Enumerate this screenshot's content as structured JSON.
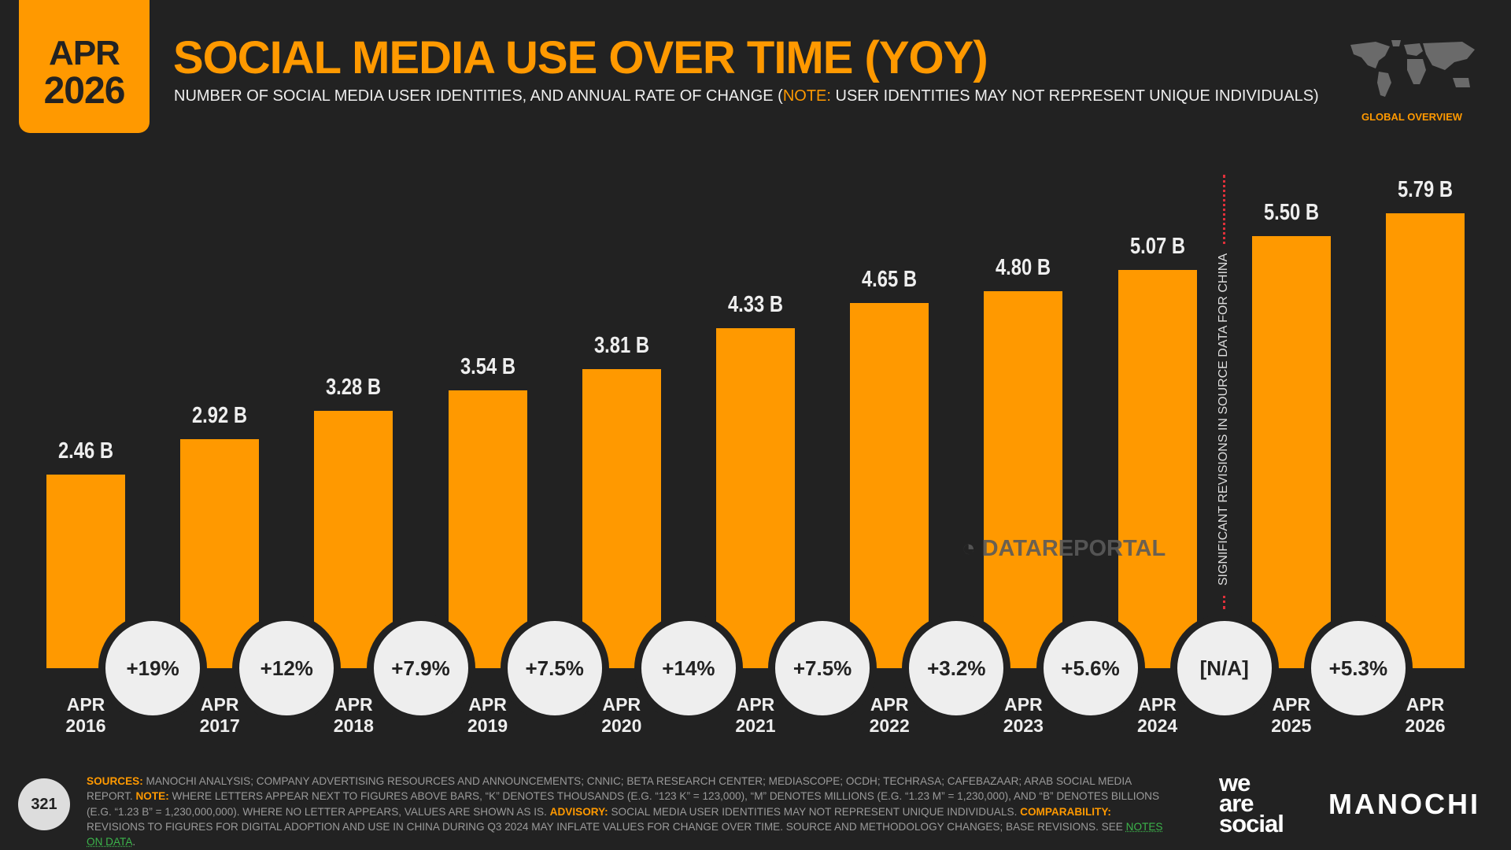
{
  "header": {
    "date_month": "APR",
    "date_year": "2026",
    "title": "SOCIAL MEDIA USE OVER TIME (YOY)",
    "subtitle_pre": "NUMBER OF SOCIAL MEDIA USER IDENTITIES, AND ANNUAL RATE OF CHANGE (",
    "subtitle_note_label": "NOTE:",
    "subtitle_post": " USER IDENTITIES MAY NOT REPRESENT UNIQUE INDIVIDUALS)",
    "region_label": "GLOBAL OVERVIEW"
  },
  "chart_data": {
    "type": "bar",
    "categories": [
      [
        "APR",
        "2016"
      ],
      [
        "APR",
        "2017"
      ],
      [
        "APR",
        "2018"
      ],
      [
        "APR",
        "2019"
      ],
      [
        "APR",
        "2020"
      ],
      [
        "APR",
        "2021"
      ],
      [
        "APR",
        "2022"
      ],
      [
        "APR",
        "2023"
      ],
      [
        "APR",
        "2024"
      ],
      [
        "APR",
        "2025"
      ],
      [
        "APR",
        "2026"
      ]
    ],
    "values": [
      2.46,
      2.92,
      3.28,
      3.54,
      3.81,
      4.33,
      4.65,
      4.8,
      5.07,
      5.5,
      5.79
    ],
    "value_labels": [
      "2.46 B",
      "2.92 B",
      "3.28 B",
      "3.54 B",
      "3.81 B",
      "4.33 B",
      "4.65 B",
      "4.80 B",
      "5.07 B",
      "5.50 B",
      "5.79 B"
    ],
    "unit": "B",
    "changes": [
      "+19%",
      "+12%",
      "+7.9%",
      "+7.5%",
      "+14%",
      "+7.5%",
      "+3.2%",
      "+5.6%",
      "[N/A]",
      "+5.3%"
    ],
    "annotation": "SIGNIFICANT REVISIONS IN SOURCE DATA FOR CHINA",
    "bar_color": "#FF9900",
    "grid": false
  },
  "watermark": "DATAREPORTAL",
  "footer": {
    "page_number": "321",
    "sources_label": "SOURCES:",
    "sources": " MANOCHI ANALYSIS; COMPANY ADVERTISING RESOURCES AND ANNOUNCEMENTS; CNNIC; BETA RESEARCH CENTER; MEDIASCOPE; OCDH; TECHRASA; CAFEBAZAAR; ARAB SOCIAL MEDIA REPORT. ",
    "note_label": "NOTE:",
    "note": " WHERE LETTERS APPEAR NEXT TO FIGURES ABOVE BARS, “K” DENOTES THOUSANDS (E.G. “123 K” = 123,000), “M” DENOTES MILLIONS (E.G. “1.23 M” = 1,230,000), AND “B” DENOTES BILLIONS (E.G. “1.23 B” = 1,230,000,000). WHERE NO LETTER APPEARS, VALUES ARE SHOWN AS IS. ",
    "advisory_label": "ADVISORY:",
    "advisory": " SOCIAL MEDIA USER IDENTITIES MAY NOT REPRESENT UNIQUE INDIVIDUALS. ",
    "comparability_label": "COMPARABILITY:",
    "comparability": " REVISIONS TO FIGURES FOR DIGITAL ADOPTION AND USE IN CHINA DURING Q3 2024 MAY INFLATE VALUES FOR CHANGE OVER TIME. SOURCE AND METHODOLOGY CHANGES; BASE REVISIONS. SEE ",
    "link": "NOTES ON DATA",
    "end": ".",
    "brand1": "we are social",
    "brand2": "MANOCHI"
  }
}
